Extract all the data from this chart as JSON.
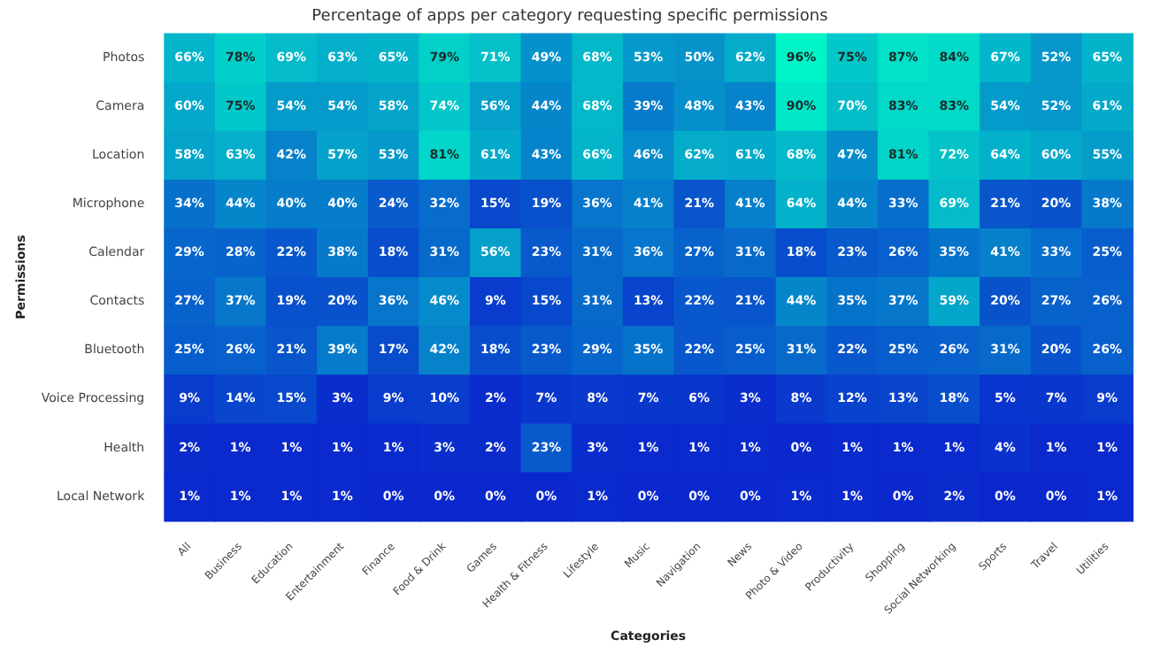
{
  "chart_data": {
    "type": "heatmap",
    "title": "Percentage of apps per category requesting specific permissions",
    "xlabel": "Categories",
    "ylabel": "Permissions",
    "categories": [
      "All",
      "Business",
      "Education",
      "Entertainment",
      "Finance",
      "Food & Drink",
      "Games",
      "Health & Fitness",
      "Lifestyle",
      "Music",
      "Navigation",
      "News",
      "Photo & Video",
      "Productivity",
      "Shopping",
      "Social Networking",
      "Sports",
      "Travel",
      "Utilities"
    ],
    "y_categories": [
      "Photos",
      "Camera",
      "Location",
      "Microphone",
      "Calendar",
      "Contacts",
      "Bluetooth",
      "Voice Processing",
      "Health",
      "Local Network"
    ],
    "cells": [
      [
        66,
        78,
        69,
        63,
        65,
        79,
        71,
        49,
        68,
        53,
        50,
        62,
        96,
        75,
        87,
        84,
        67,
        52,
        65
      ],
      [
        60,
        75,
        54,
        54,
        58,
        74,
        56,
        44,
        68,
        39,
        48,
        43,
        90,
        70,
        83,
        83,
        54,
        52,
        61
      ],
      [
        58,
        63,
        42,
        57,
        53,
        81,
        61,
        43,
        66,
        46,
        62,
        61,
        68,
        47,
        81,
        72,
        64,
        60,
        55
      ],
      [
        34,
        44,
        40,
        40,
        24,
        32,
        15,
        19,
        36,
        41,
        21,
        41,
        64,
        44,
        33,
        69,
        21,
        20,
        38
      ],
      [
        29,
        28,
        22,
        38,
        18,
        31,
        56,
        23,
        31,
        36,
        27,
        31,
        18,
        23,
        26,
        35,
        41,
        33,
        25
      ],
      [
        27,
        37,
        19,
        20,
        36,
        46,
        9,
        15,
        31,
        13,
        22,
        21,
        44,
        35,
        37,
        59,
        20,
        27,
        26
      ],
      [
        25,
        26,
        21,
        39,
        17,
        42,
        18,
        23,
        29,
        35,
        22,
        25,
        31,
        22,
        25,
        26,
        31,
        20,
        26
      ],
      [
        9,
        14,
        15,
        3,
        9,
        10,
        2,
        7,
        8,
        7,
        6,
        3,
        8,
        12,
        13,
        18,
        5,
        7,
        9
      ],
      [
        2,
        1,
        1,
        1,
        1,
        3,
        2,
        23,
        3,
        1,
        1,
        1,
        0,
        1,
        1,
        1,
        4,
        1,
        1
      ],
      [
        1,
        1,
        1,
        1,
        0,
        0,
        0,
        0,
        1,
        0,
        0,
        0,
        1,
        1,
        0,
        2,
        0,
        0,
        1
      ]
    ],
    "cell_labels": [
      [
        "66%",
        "78%",
        "69%",
        "63%",
        "65%",
        "79%",
        "71%",
        "49%",
        "68%",
        "53%",
        "50%",
        "62%",
        "96%",
        "75%",
        "87%",
        "84%",
        "67%",
        "52%",
        "65%"
      ],
      [
        "60%",
        "75%",
        "54%",
        "54%",
        "58%",
        "74%",
        "56%",
        "44%",
        "68%",
        "39%",
        "48%",
        "43%",
        "90%",
        "70%",
        "83%",
        "83%",
        "54%",
        "52%",
        "61%"
      ],
      [
        "58%",
        "63%",
        "42%",
        "57%",
        "53%",
        "81%",
        "61%",
        "43%",
        "66%",
        "46%",
        "62%",
        "61%",
        "68%",
        "47%",
        "81%",
        "72%",
        "64%",
        "60%",
        "55%"
      ],
      [
        "34%",
        "44%",
        "40%",
        "40%",
        "24%",
        "32%",
        "15%",
        "19%",
        "36%",
        "41%",
        "21%",
        "41%",
        "64%",
        "44%",
        "33%",
        "69%",
        "21%",
        "20%",
        "38%"
      ],
      [
        "29%",
        "28%",
        "22%",
        "38%",
        "18%",
        "31%",
        "56%",
        "23%",
        "31%",
        "36%",
        "27%",
        "31%",
        "18%",
        "23%",
        "26%",
        "35%",
        "41%",
        "33%",
        "25%"
      ],
      [
        "27%",
        "37%",
        "19%",
        "20%",
        "36%",
        "46%",
        "9%",
        "15%",
        "31%",
        "13%",
        "22%",
        "21%",
        "44%",
        "35%",
        "37%",
        "59%",
        "20%",
        "27%",
        "26%"
      ],
      [
        "25%",
        "26%",
        "21%",
        "39%",
        "17%",
        "42%",
        "18%",
        "23%",
        "29%",
        "35%",
        "22%",
        "25%",
        "31%",
        "22%",
        "25%",
        "26%",
        "31%",
        "20%",
        "26%"
      ],
      [
        "9%",
        "14%",
        "15%",
        "3%",
        "9%",
        "10%",
        "2%",
        "7%",
        "8%",
        "7%",
        "6%",
        "3%",
        "8%",
        "12%",
        "13%",
        "18%",
        "5%",
        "7%",
        "9%"
      ],
      [
        "2%",
        "1%",
        "1%",
        "1%",
        "1%",
        "3%",
        "2%",
        "23%",
        "3%",
        "1%",
        "1%",
        "1%",
        "0%",
        "1%",
        "1%",
        "1%",
        "4%",
        "1%",
        "1%"
      ],
      [
        "1%",
        "1%",
        "1%",
        "1%",
        "0%",
        "0%",
        "0%",
        "0%",
        "1%",
        "0%",
        "0%",
        "0%",
        "1%",
        "1%",
        "0%",
        "2%",
        "0%",
        "0%",
        "1%"
      ]
    ]
  }
}
